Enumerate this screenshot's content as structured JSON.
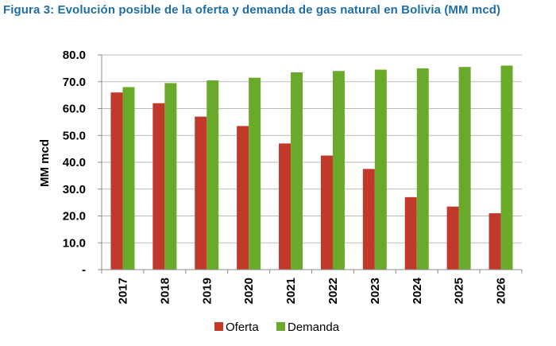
{
  "title": "Figura 3: Evolución posible de la oferta y demanda de gas natural en Bolivia (MM mcd)",
  "colors": {
    "title": "#1f6ea8",
    "oferta": "#c0392b",
    "demanda": "#6aaa2a"
  },
  "chart_data": {
    "type": "bar",
    "title": "",
    "xlabel": "",
    "ylabel": "MM mcd",
    "categories": [
      "2017",
      "2018",
      "2019",
      "2020",
      "2021",
      "2022",
      "2023",
      "2024",
      "2025",
      "2026"
    ],
    "series": [
      {
        "name": "Oferta",
        "values": [
          66.0,
          62.0,
          57.0,
          53.5,
          47.0,
          42.5,
          37.5,
          27.0,
          23.5,
          21.0
        ]
      },
      {
        "name": "Demanda",
        "values": [
          68.0,
          69.5,
          70.5,
          71.5,
          73.5,
          74.0,
          74.5,
          75.0,
          75.5,
          76.0
        ]
      }
    ],
    "ylim": [
      0,
      80
    ],
    "yticks": [
      "-",
      "10.0",
      "20.0",
      "30.0",
      "40.0",
      "50.0",
      "60.0",
      "70.0",
      "80.0"
    ],
    "grid": true,
    "legend_position": "bottom"
  }
}
